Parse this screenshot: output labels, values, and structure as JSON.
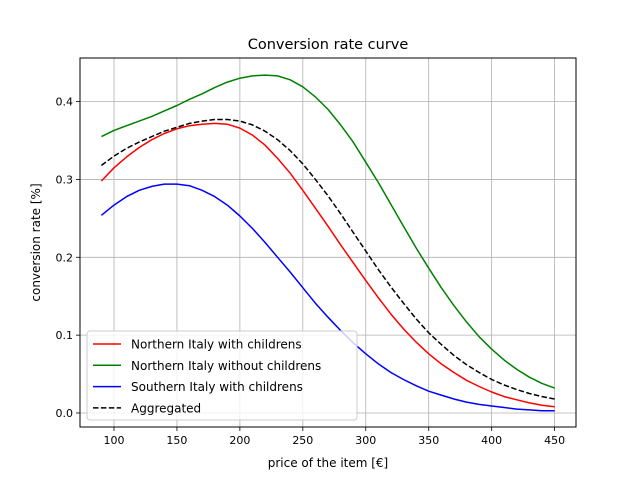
{
  "chart_data": {
    "type": "line",
    "title": "Conversion rate curve",
    "xlabel": "price of the item [€]",
    "ylabel": "conversion rate [%]",
    "xlim": [
      73,
      467
    ],
    "ylim": [
      -0.018,
      0.456
    ],
    "xticks": [
      100,
      150,
      200,
      250,
      300,
      350,
      400,
      450
    ],
    "yticks": [
      0.0,
      0.1,
      0.2,
      0.3,
      0.4
    ],
    "xtick_labels": [
      "100",
      "150",
      "200",
      "250",
      "300",
      "350",
      "400",
      "450"
    ],
    "ytick_labels": [
      "0.0",
      "0.1",
      "0.2",
      "0.3",
      "0.4"
    ],
    "grid": true,
    "legend_position": "lower-left",
    "x": [
      90,
      100,
      110,
      120,
      130,
      140,
      150,
      160,
      170,
      180,
      190,
      200,
      210,
      220,
      230,
      240,
      250,
      260,
      270,
      280,
      290,
      300,
      310,
      320,
      330,
      340,
      350,
      360,
      370,
      380,
      390,
      400,
      410,
      420,
      430,
      440,
      450
    ],
    "series": [
      {
        "name": "Northern Italy with childrens",
        "color": "#ff0000",
        "dash": "solid",
        "values": [
          0.298,
          0.315,
          0.329,
          0.341,
          0.351,
          0.359,
          0.365,
          0.369,
          0.371,
          0.372,
          0.371,
          0.366,
          0.357,
          0.344,
          0.327,
          0.308,
          0.286,
          0.263,
          0.24,
          0.216,
          0.193,
          0.17,
          0.148,
          0.127,
          0.108,
          0.091,
          0.076,
          0.063,
          0.052,
          0.042,
          0.034,
          0.027,
          0.021,
          0.017,
          0.013,
          0.01,
          0.008
        ]
      },
      {
        "name": "Northern Italy without childrens",
        "color": "#008000",
        "dash": "solid",
        "values": [
          0.355,
          0.363,
          0.369,
          0.375,
          0.381,
          0.388,
          0.395,
          0.403,
          0.41,
          0.418,
          0.425,
          0.43,
          0.433,
          0.434,
          0.433,
          0.428,
          0.419,
          0.406,
          0.39,
          0.37,
          0.348,
          0.322,
          0.296,
          0.268,
          0.24,
          0.212,
          0.186,
          0.161,
          0.138,
          0.117,
          0.098,
          0.082,
          0.068,
          0.056,
          0.046,
          0.038,
          0.032
        ]
      },
      {
        "name": "Southern Italy with childrens",
        "color": "#0000ff",
        "dash": "solid",
        "values": [
          0.254,
          0.267,
          0.278,
          0.286,
          0.291,
          0.294,
          0.294,
          0.292,
          0.286,
          0.278,
          0.267,
          0.253,
          0.237,
          0.219,
          0.2,
          0.181,
          0.161,
          0.141,
          0.123,
          0.106,
          0.09,
          0.076,
          0.063,
          0.052,
          0.043,
          0.035,
          0.028,
          0.023,
          0.018,
          0.014,
          0.011,
          0.009,
          0.007,
          0.005,
          0.004,
          0.003,
          0.003
        ]
      },
      {
        "name": "Aggregated",
        "color": "#000000",
        "dash": "dashed",
        "values": [
          0.318,
          0.33,
          0.34,
          0.348,
          0.355,
          0.362,
          0.367,
          0.372,
          0.375,
          0.377,
          0.377,
          0.375,
          0.37,
          0.362,
          0.351,
          0.337,
          0.32,
          0.3,
          0.279,
          0.256,
          0.232,
          0.208,
          0.184,
          0.162,
          0.141,
          0.121,
          0.103,
          0.088,
          0.074,
          0.062,
          0.052,
          0.043,
          0.036,
          0.03,
          0.025,
          0.021,
          0.018
        ]
      }
    ]
  }
}
